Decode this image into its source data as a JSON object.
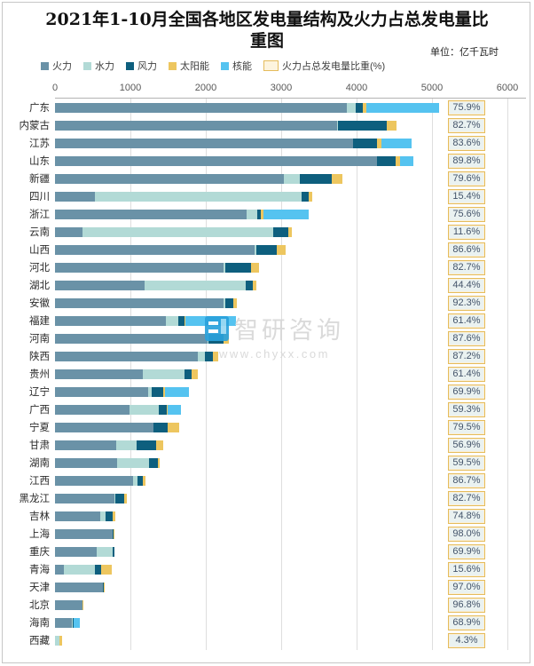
{
  "header": {
    "title_line1": "2021年1-10月全国各地区发电量结构及火力占总发电量比",
    "title_line2": "重图",
    "unit_label": "单位：亿千瓦时"
  },
  "legend": {
    "items": [
      {
        "label": "火力",
        "swatch": "square",
        "color": "#6a92a7"
      },
      {
        "label": "水力",
        "swatch": "square",
        "color": "#b2dad6"
      },
      {
        "label": "风力",
        "swatch": "square",
        "color": "#0e5f7e"
      },
      {
        "label": "太阳能",
        "swatch": "square",
        "color": "#edc65f"
      },
      {
        "label": "核能",
        "swatch": "square",
        "color": "#55c3f0"
      },
      {
        "label": "火力占总发电量比重(%)",
        "swatch": "outline",
        "color": "#fdf4de"
      }
    ]
  },
  "watermark": {
    "brand": "智研咨询",
    "url": "www.chyxx.com",
    "logo_color": "#2aa2dc"
  },
  "chart_data": {
    "type": "bar",
    "orientation": "horizontal",
    "stacked": true,
    "title": "2021年1-10月全国各地区发电量结构及火力占总发电量比重图",
    "unit": "亿千瓦时",
    "x_axis": {
      "min": 0,
      "max": 6000,
      "tick_interval": 1000,
      "ticks": [
        0,
        1000,
        2000,
        3000,
        4000,
        5000,
        6000
      ]
    },
    "grid": true,
    "legend_position": "top",
    "series": [
      {
        "key": "thermal",
        "name": "火力",
        "color": "#6a92a7"
      },
      {
        "key": "hydro",
        "name": "水力",
        "color": "#b2dad6"
      },
      {
        "key": "wind",
        "name": "风力",
        "color": "#0e5f7e"
      },
      {
        "key": "solar",
        "name": "太阳能",
        "color": "#edc65f"
      },
      {
        "key": "nuclear",
        "name": "核能",
        "color": "#55c3f0"
      }
    ],
    "share_series_name": "火力占总发电量比重(%)",
    "regions": [
      {
        "name": "广东",
        "values": [
          3865,
          120,
          95,
          45,
          965
        ],
        "thermal_share": "75.9%"
      },
      {
        "name": "内蒙古",
        "values": [
          3745,
          5,
          650,
          130,
          0
        ],
        "thermal_share": "82.7%"
      },
      {
        "name": "江苏",
        "values": [
          3950,
          0,
          320,
          60,
          395
        ],
        "thermal_share": "83.6%"
      },
      {
        "name": "山东",
        "values": [
          4270,
          0,
          250,
          60,
          175
        ],
        "thermal_share": "89.8%"
      },
      {
        "name": "新疆",
        "values": [
          3035,
          210,
          425,
          145,
          0
        ],
        "thermal_share": "79.6%"
      },
      {
        "name": "四川",
        "values": [
          525,
          2740,
          105,
          40,
          0
        ],
        "thermal_share": "15.4%"
      },
      {
        "name": "浙江",
        "values": [
          2545,
          140,
          45,
          40,
          595
        ],
        "thermal_share": "75.6%"
      },
      {
        "name": "云南",
        "values": [
          365,
          2530,
          200,
          50,
          0
        ],
        "thermal_share": "11.6%"
      },
      {
        "name": "山西",
        "values": [
          2650,
          20,
          270,
          120,
          0
        ],
        "thermal_share": "86.6%"
      },
      {
        "name": "河北",
        "values": [
          2240,
          15,
          340,
          115,
          0
        ],
        "thermal_share": "82.7%"
      },
      {
        "name": "湖北",
        "values": [
          1185,
          1340,
          95,
          50,
          0
        ],
        "thermal_share": "44.4%"
      },
      {
        "name": "安徽",
        "values": [
          2230,
          25,
          110,
          50,
          0
        ],
        "thermal_share": "92.3%"
      },
      {
        "name": "福建",
        "values": [
          1470,
          160,
          90,
          10,
          665
        ],
        "thermal_share": "61.4%"
      },
      {
        "name": "河南",
        "values": [
          2020,
          20,
          190,
          75,
          0
        ],
        "thermal_share": "87.6%"
      },
      {
        "name": "陕西",
        "values": [
          1890,
          100,
          105,
          70,
          0
        ],
        "thermal_share": "87.2%"
      },
      {
        "name": "贵州",
        "values": [
          1160,
          555,
          100,
          75,
          0
        ],
        "thermal_share": "61.4%"
      },
      {
        "name": "辽宁",
        "values": [
          1240,
          45,
          150,
          20,
          320
        ],
        "thermal_share": "69.9%"
      },
      {
        "name": "广西",
        "values": [
          990,
          385,
          110,
          15,
          170
        ],
        "thermal_share": "59.3%"
      },
      {
        "name": "宁夏",
        "values": [
          1310,
          0,
          190,
          148,
          0
        ],
        "thermal_share": "79.5%"
      },
      {
        "name": "甘肃",
        "values": [
          815,
          270,
          260,
          88,
          0
        ],
        "thermal_share": "56.9%"
      },
      {
        "name": "湖南",
        "values": [
          825,
          420,
          120,
          22,
          0
        ],
        "thermal_share": "59.5%"
      },
      {
        "name": "江西",
        "values": [
          1040,
          50,
          80,
          30,
          0
        ],
        "thermal_share": "86.7%"
      },
      {
        "name": "黑龙江",
        "values": [
          785,
          15,
          115,
          35,
          0
        ],
        "thermal_share": "82.7%"
      },
      {
        "name": "吉林",
        "values": [
          600,
          75,
          95,
          32,
          0
        ],
        "thermal_share": "74.8%"
      },
      {
        "name": "上海",
        "values": [
          770,
          0,
          10,
          6,
          0
        ],
        "thermal_share": "98.0%"
      },
      {
        "name": "重庆",
        "values": [
          550,
          215,
          22,
          0,
          0
        ],
        "thermal_share": "69.9%"
      },
      {
        "name": "青海",
        "values": [
          118,
          410,
          80,
          148,
          0
        ],
        "thermal_share": "15.6%"
      },
      {
        "name": "天津",
        "values": [
          630,
          0,
          12,
          8,
          0
        ],
        "thermal_share": "97.0%"
      },
      {
        "name": "北京",
        "values": [
          363,
          0,
          0,
          12,
          0
        ],
        "thermal_share": "96.8%"
      },
      {
        "name": "海南",
        "values": [
          228,
          10,
          15,
          0,
          78
        ],
        "thermal_share": "68.9%"
      },
      {
        "name": "西藏",
        "values": [
          4,
          60,
          0,
          28,
          0
        ],
        "thermal_share": "4.3%"
      }
    ]
  }
}
